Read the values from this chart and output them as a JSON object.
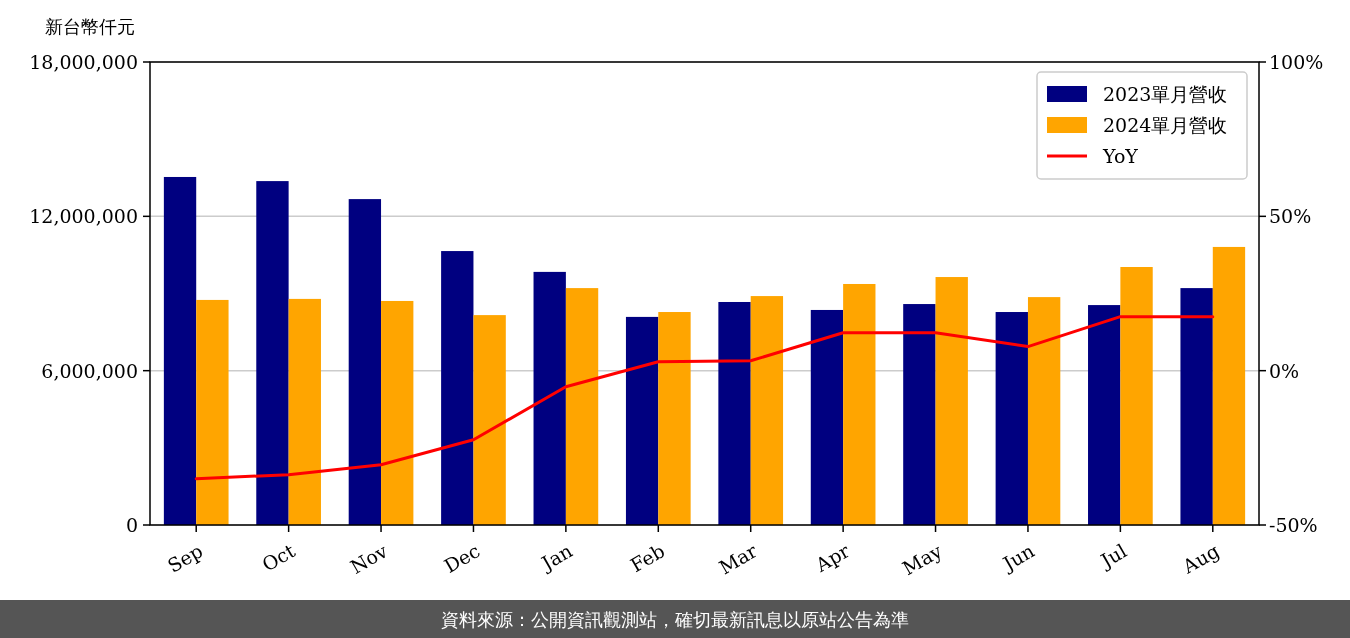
{
  "chart_data": {
    "type": "bar",
    "ylabel": "新台幣仟元",
    "categories": [
      "Sep",
      "Oct",
      "Nov",
      "Dec",
      "Jan",
      "Feb",
      "Mar",
      "Apr",
      "May",
      "Jun",
      "Jul",
      "Aug"
    ],
    "series": [
      {
        "name": "2023單月營收",
        "color": "#000080",
        "values": [
          13530000,
          13370000,
          12670000,
          10650000,
          9840000,
          8090000,
          8670000,
          8360000,
          8590000,
          8280000,
          8550000,
          9210000
        ]
      },
      {
        "name": "2024單月營收",
        "color": "#ffa500",
        "values": [
          8750000,
          8790000,
          8710000,
          8160000,
          9210000,
          8280000,
          8900000,
          9370000,
          9640000,
          8860000,
          10030000,
          10810000
        ]
      },
      {
        "name": "YoY",
        "type": "line",
        "axis": "y2",
        "color": "#ff0000",
        "values": [
          -35.0,
          -33.7,
          -30.5,
          -22.4,
          -5.2,
          2.9,
          3.2,
          12.3,
          12.3,
          7.8,
          17.5,
          17.5
        ]
      }
    ],
    "ylim": [
      0,
      18000000
    ],
    "yticks": [
      {
        "value": 0,
        "label": "0"
      },
      {
        "value": 6000000,
        "label": "6,000,000"
      },
      {
        "value": 12000000,
        "label": "12,000,000"
      },
      {
        "value": 18000000,
        "label": "18,000,000"
      }
    ],
    "y2lim": [
      -50,
      100
    ],
    "y2ticks": [
      {
        "value": -50,
        "label": "-50%"
      },
      {
        "value": 0,
        "label": "0%"
      },
      {
        "value": 50,
        "label": "50%"
      },
      {
        "value": 100,
        "label": "100%"
      }
    ],
    "grid": "y",
    "legend": "top right",
    "annotations": [
      "資料來源：公開資訊觀測站，確切最新訊息以原站公告為準"
    ]
  }
}
